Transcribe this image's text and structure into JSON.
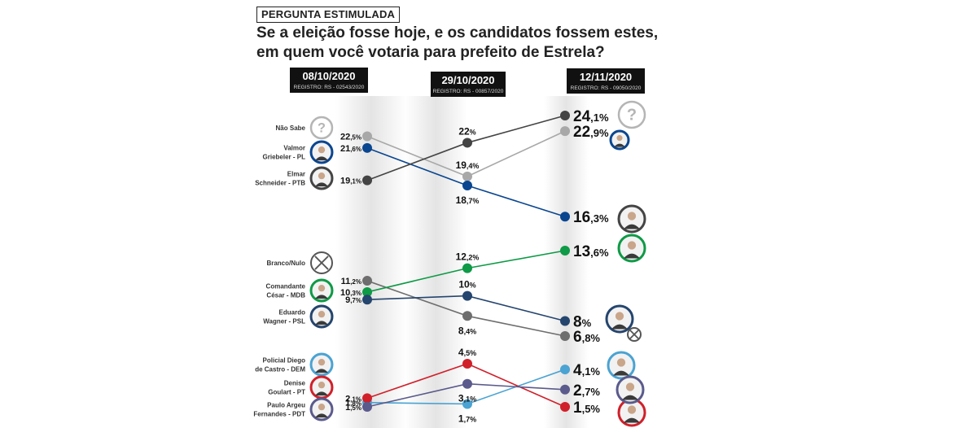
{
  "header": {
    "tag": "PERGUNTA ESTIMULADA",
    "question_line1": "Se a eleição fosse hoje, e os candidatos fossem estes,",
    "question_line2": "em quem você votaria para prefeito de Estrela?"
  },
  "colors": {
    "nao_sabe": "#a8a8a8",
    "valmor": "#0a4690",
    "elmar": "#444444",
    "branco": "#6e6e6e",
    "cesar": "#0e9a46",
    "eduardo": "#24456e",
    "diego": "#4aa3d2",
    "denise": "#d0202a",
    "paulo": "#5a5a8c"
  },
  "chart_data": {
    "type": "line",
    "x": [
      "08/10/2020",
      "29/10/2020",
      "12/11/2020"
    ],
    "registros": [
      "REGISTRO: RS - 02543/2020",
      "REGISTRO: RS - 00857/2020",
      "REGISTRO: RS - 09050/2020"
    ],
    "groups": [
      {
        "series": [
          {
            "key": "nao_sabe",
            "label_lines": [
              "Não Sabe"
            ],
            "values": [
              22.5,
              19.4,
              22.9
            ],
            "labels": [
              "22,5%",
              "19,4%",
              "22,9%"
            ],
            "icon": "question-icon"
          },
          {
            "key": "valmor",
            "label_lines": [
              "Valmor",
              "Griebeler - PL"
            ],
            "values": [
              21.6,
              18.7,
              16.3
            ],
            "labels": [
              "21,6%",
              "18,7%",
              "16,3%"
            ],
            "icon": "person-icon"
          },
          {
            "key": "elmar",
            "label_lines": [
              "Elmar",
              "Schneider - PTB"
            ],
            "values": [
              19.1,
              22,
              24.1
            ],
            "labels": [
              "19,1%",
              "22%",
              "24,1%"
            ],
            "icon": "person-icon"
          }
        ]
      },
      {
        "series": [
          {
            "key": "branco",
            "label_lines": [
              "Branco/Nulo"
            ],
            "values": [
              11.2,
              8.4,
              6.8
            ],
            "labels": [
              "11,2%",
              "8,4%",
              "6,8%"
            ],
            "icon": "cross-icon"
          },
          {
            "key": "cesar",
            "label_lines": [
              "Comandante",
              "César - MDB"
            ],
            "values": [
              10.3,
              12.2,
              13.6
            ],
            "labels": [
              "10,3%",
              "12,2%",
              "13,6%"
            ],
            "icon": "person-icon"
          },
          {
            "key": "eduardo",
            "label_lines": [
              "Eduardo",
              "Wagner - PSL"
            ],
            "values": [
              9.7,
              10,
              8
            ],
            "labels": [
              "9,7%",
              "10%",
              "8%"
            ],
            "icon": "person-icon"
          }
        ]
      },
      {
        "series": [
          {
            "key": "diego",
            "label_lines": [
              "Policial Diego",
              "de Castro - DEM"
            ],
            "values": [
              1.8,
              1.7,
              4.1
            ],
            "labels": [
              "1,8%",
              "1,7%",
              "4,1%"
            ],
            "icon": "person-icon"
          },
          {
            "key": "denise",
            "label_lines": [
              "Denise",
              "Goulart - PT"
            ],
            "values": [
              2.1,
              4.5,
              1.5
            ],
            "labels": [
              "2,1%",
              "4,5%",
              "1,5%"
            ],
            "icon": "person-icon"
          },
          {
            "key": "paulo",
            "label_lines": [
              "Paulo Argeu",
              "Fernandes - PDT"
            ],
            "values": [
              1.5,
              3.1,
              2.7
            ],
            "labels": [
              "1,5%",
              "3,1%",
              "2,7%"
            ],
            "icon": "person-icon"
          }
        ]
      }
    ]
  }
}
